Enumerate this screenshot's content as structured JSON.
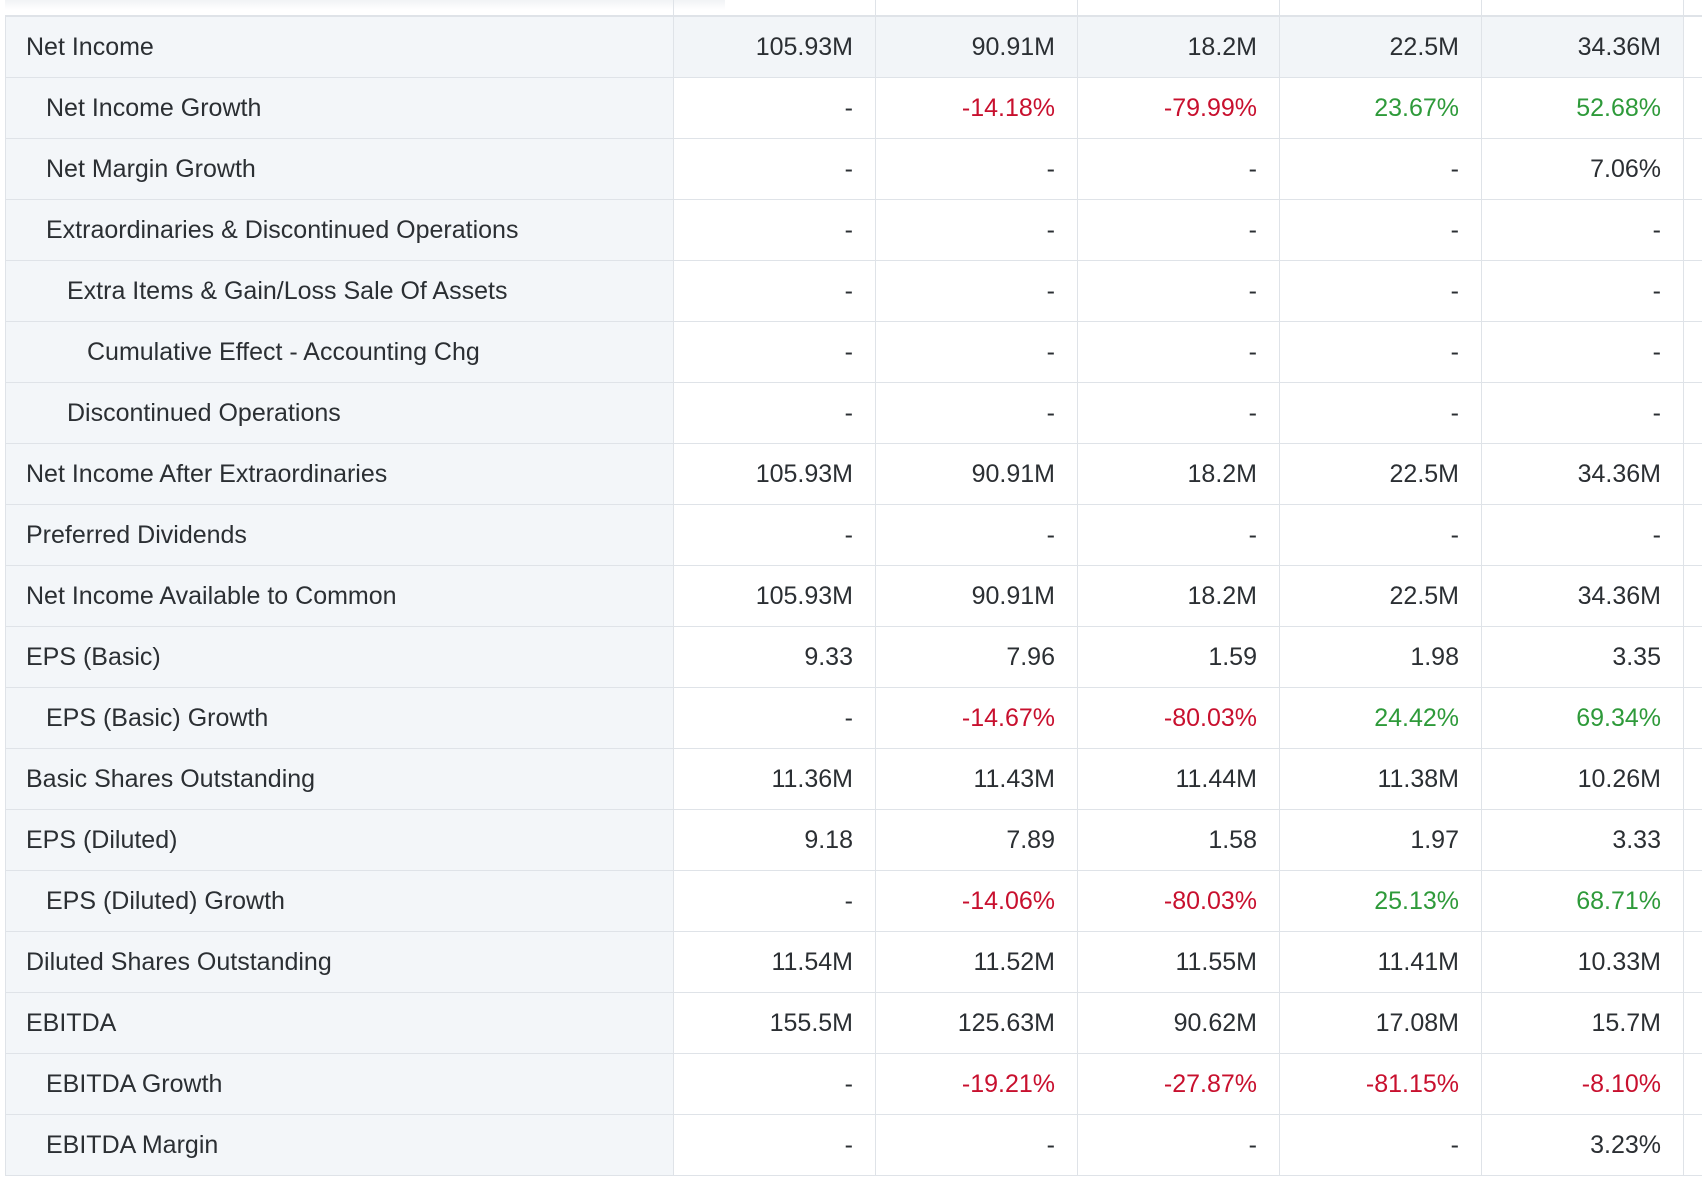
{
  "table": {
    "rows": [
      {
        "label": "Net Income",
        "values": [
          "105.93M",
          "90.91M",
          "18.2M",
          "22.5M",
          "34.36M"
        ],
        "tones": [
          "",
          "",
          "",
          "",
          ""
        ]
      },
      {
        "label": "Net Income Growth",
        "values": [
          "-",
          "-14.18%",
          "-79.99%",
          "23.67%",
          "52.68%"
        ],
        "tones": [
          "",
          "neg",
          "neg",
          "pos",
          "pos"
        ]
      },
      {
        "label": "Net Margin Growth",
        "values": [
          "-",
          "-",
          "-",
          "-",
          "7.06%"
        ],
        "tones": [
          "",
          "",
          "",
          "",
          ""
        ]
      },
      {
        "label": "Extraordinaries & Discontinued Operations",
        "values": [
          "-",
          "-",
          "-",
          "-",
          "-"
        ],
        "tones": [
          "",
          "",
          "",
          "",
          ""
        ]
      },
      {
        "label": "Extra Items & Gain/Loss Sale Of Assets",
        "values": [
          "-",
          "-",
          "-",
          "-",
          "-"
        ],
        "tones": [
          "",
          "",
          "",
          "",
          ""
        ]
      },
      {
        "label": "Cumulative Effect - Accounting Chg",
        "values": [
          "-",
          "-",
          "-",
          "-",
          "-"
        ],
        "tones": [
          "",
          "",
          "",
          "",
          ""
        ]
      },
      {
        "label": "Discontinued Operations",
        "values": [
          "-",
          "-",
          "-",
          "-",
          "-"
        ],
        "tones": [
          "",
          "",
          "",
          "",
          ""
        ]
      },
      {
        "label": "Net Income After Extraordinaries",
        "values": [
          "105.93M",
          "90.91M",
          "18.2M",
          "22.5M",
          "34.36M"
        ],
        "tones": [
          "",
          "",
          "",
          "",
          ""
        ]
      },
      {
        "label": "Preferred Dividends",
        "values": [
          "-",
          "-",
          "-",
          "-",
          "-"
        ],
        "tones": [
          "",
          "",
          "",
          "",
          ""
        ]
      },
      {
        "label": "Net Income Available to Common",
        "values": [
          "105.93M",
          "90.91M",
          "18.2M",
          "22.5M",
          "34.36M"
        ],
        "tones": [
          "",
          "",
          "",
          "",
          ""
        ]
      },
      {
        "label": "EPS (Basic)",
        "values": [
          "9.33",
          "7.96",
          "1.59",
          "1.98",
          "3.35"
        ],
        "tones": [
          "",
          "",
          "",
          "",
          ""
        ]
      },
      {
        "label": "EPS (Basic) Growth",
        "values": [
          "-",
          "-14.67%",
          "-80.03%",
          "24.42%",
          "69.34%"
        ],
        "tones": [
          "",
          "neg",
          "neg",
          "pos",
          "pos"
        ]
      },
      {
        "label": "Basic Shares Outstanding",
        "values": [
          "11.36M",
          "11.43M",
          "11.44M",
          "11.38M",
          "10.26M"
        ],
        "tones": [
          "",
          "",
          "",
          "",
          ""
        ]
      },
      {
        "label": "EPS (Diluted)",
        "values": [
          "9.18",
          "7.89",
          "1.58",
          "1.97",
          "3.33"
        ],
        "tones": [
          "",
          "",
          "",
          "",
          ""
        ]
      },
      {
        "label": "EPS (Diluted) Growth",
        "values": [
          "-",
          "-14.06%",
          "-80.03%",
          "25.13%",
          "68.71%"
        ],
        "tones": [
          "",
          "neg",
          "neg",
          "pos",
          "pos"
        ]
      },
      {
        "label": "Diluted Shares Outstanding",
        "values": [
          "11.54M",
          "11.52M",
          "11.55M",
          "11.41M",
          "10.33M"
        ],
        "tones": [
          "",
          "",
          "",
          "",
          ""
        ]
      },
      {
        "label": "EBITDA",
        "values": [
          "155.5M",
          "125.63M",
          "90.62M",
          "17.08M",
          "15.7M"
        ],
        "tones": [
          "",
          "",
          "",
          "",
          ""
        ]
      },
      {
        "label": "EBITDA Growth",
        "values": [
          "-",
          "-19.21%",
          "-27.87%",
          "-81.15%",
          "-8.10%"
        ],
        "tones": [
          "",
          "neg",
          "neg",
          "neg",
          "neg"
        ]
      },
      {
        "label": "EBITDA Margin",
        "values": [
          "-",
          "-",
          "-",
          "-",
          "3.23%"
        ],
        "tones": [
          "",
          "",
          "",
          "",
          ""
        ]
      }
    ]
  }
}
